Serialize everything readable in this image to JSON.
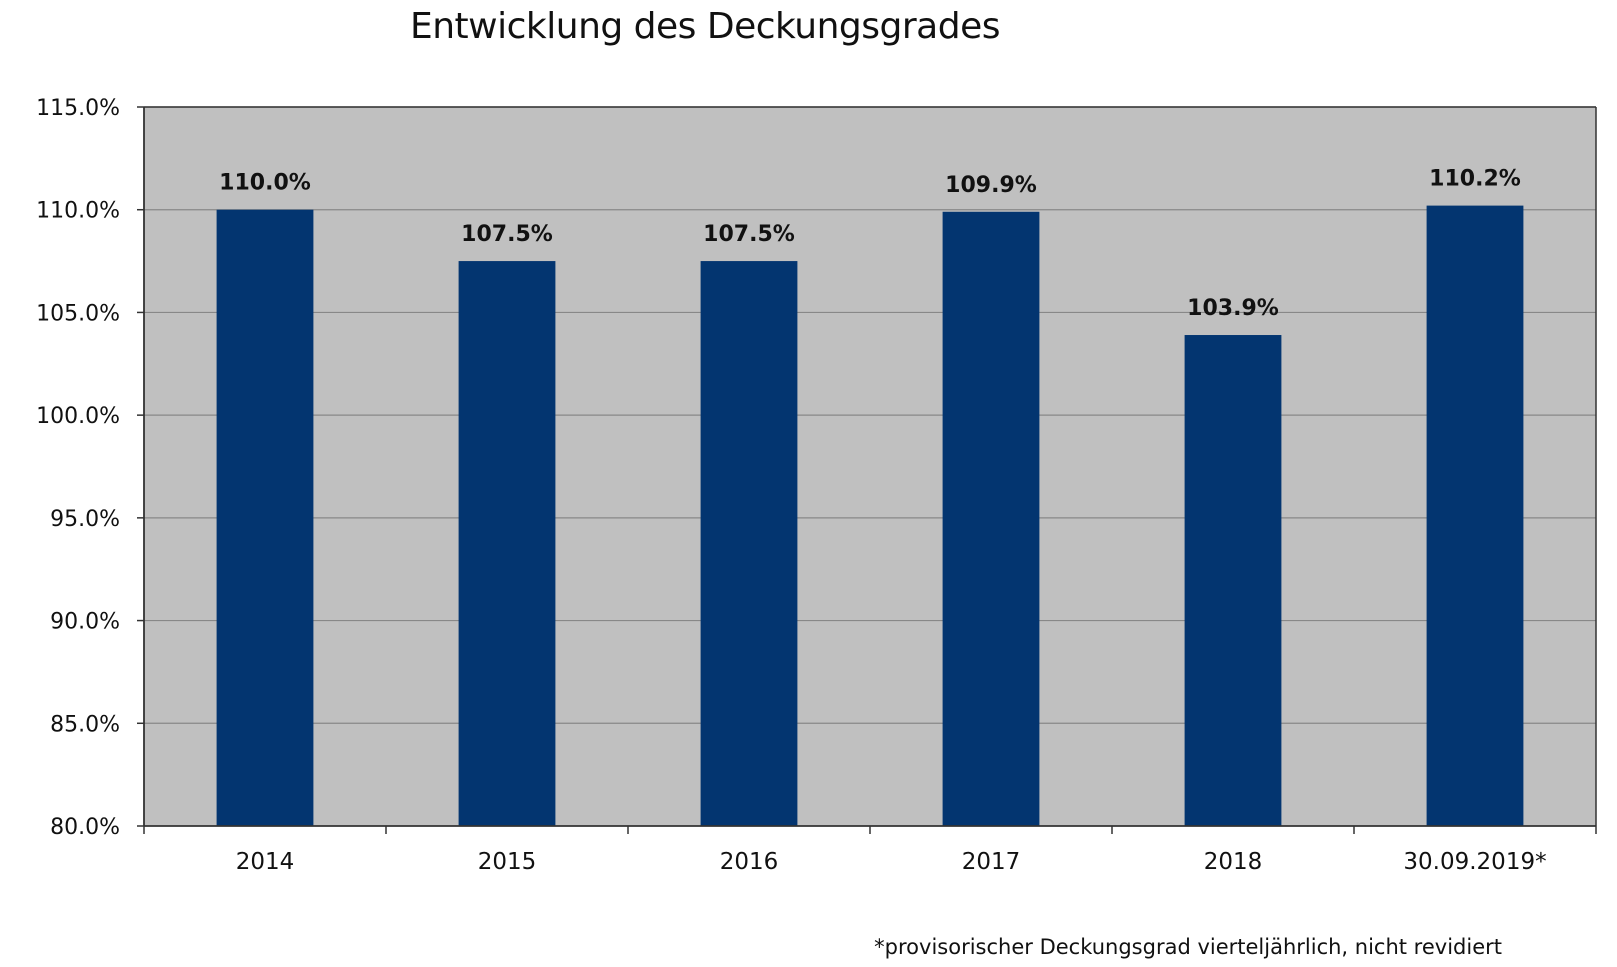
{
  "chart_data": {
    "type": "bar",
    "title": "Entwicklung des Deckungsgrades",
    "xlabel": "",
    "ylabel": "",
    "categories": [
      "2014",
      "2015",
      "2016",
      "2017",
      "2018",
      "30.09.2019*"
    ],
    "values": [
      110.0,
      107.5,
      107.5,
      109.9,
      103.9,
      110.2
    ],
    "value_labels": [
      "110.0%",
      "107.5%",
      "107.5%",
      "109.9%",
      "103.9%",
      "110.2%"
    ],
    "ylim": [
      80,
      115
    ],
    "yticks": [
      80,
      85,
      90,
      95,
      100,
      105,
      110,
      115
    ],
    "ytick_labels": [
      "80.0%",
      "85.0%",
      "90.0%",
      "95.0%",
      "100.0%",
      "105.0%",
      "110.0%",
      "115.0%"
    ],
    "grid": true,
    "legend": "none",
    "footnote": "*provisorischer Deckungsgrad vierteljährlich, nicht revidiert",
    "colors": {
      "bar": "#033570",
      "plot_background": "#c0c0c0",
      "gridline": "#888888",
      "axis": "#333333",
      "text": "#111111"
    }
  }
}
